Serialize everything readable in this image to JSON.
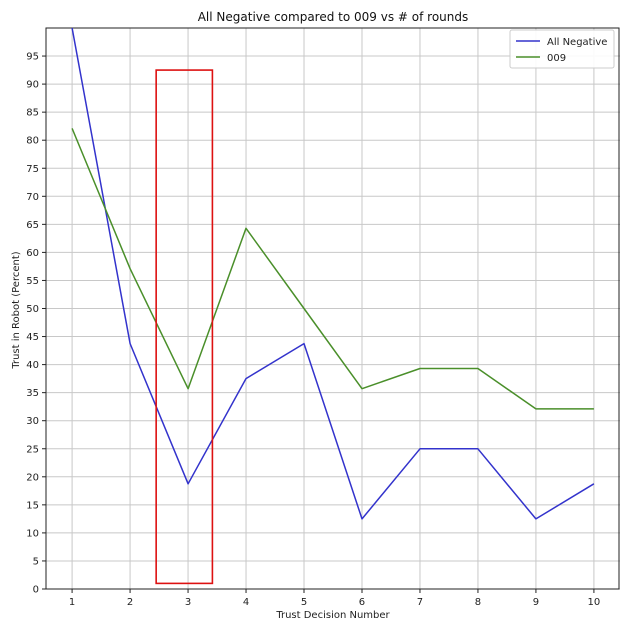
{
  "chart_data": {
    "type": "line",
    "title": "All Negative  compared to 009 vs # of rounds",
    "xlabel": "Trust Decision Number",
    "ylabel": "Trust in Robot (Percent)",
    "x": [
      1,
      2,
      3,
      4,
      5,
      6,
      7,
      8,
      9,
      10
    ],
    "xlim": [
      0.55,
      10.45
    ],
    "ylim": [
      0,
      100
    ],
    "xticks": [
      1,
      2,
      3,
      4,
      5,
      6,
      7,
      8,
      9,
      10
    ],
    "yticks": [
      0,
      5,
      10,
      15,
      20,
      25,
      30,
      35,
      40,
      45,
      50,
      55,
      60,
      65,
      70,
      75,
      80,
      85,
      90,
      95
    ],
    "grid": true,
    "legend_position": "top-right",
    "series": [
      {
        "name": "All Negative",
        "color": "#3333cc",
        "values": [
          100,
          43.75,
          18.75,
          37.5,
          43.75,
          12.5,
          25,
          25,
          12.5,
          18.75
        ]
      },
      {
        "name": "009",
        "color": "#4a8f2a",
        "values": [
          82.1,
          57.1,
          35.7,
          64.3,
          50,
          35.7,
          39.3,
          39.3,
          32.1,
          32.1
        ]
      }
    ],
    "highlight_box": {
      "x_range": [
        2.45,
        3.42
      ],
      "y_range": [
        1,
        92.5
      ],
      "color": "#dd1111"
    }
  }
}
